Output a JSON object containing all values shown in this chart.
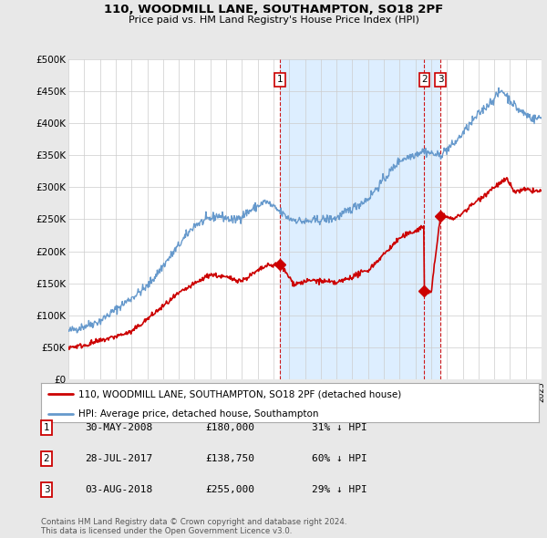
{
  "title": "110, WOODMILL LANE, SOUTHAMPTON, SO18 2PF",
  "subtitle": "Price paid vs. HM Land Registry's House Price Index (HPI)",
  "hpi_label": "HPI: Average price, detached house, Southampton",
  "property_label": "110, WOODMILL LANE, SOUTHAMPTON, SO18 2PF (detached house)",
  "hpi_color": "#6699cc",
  "property_color": "#cc0000",
  "bg_color": "#e8e8e8",
  "plot_bg": "#ffffff",
  "shade_color": "#ddeeff",
  "ylim": [
    0,
    500000
  ],
  "yticks": [
    0,
    50000,
    100000,
    150000,
    200000,
    250000,
    300000,
    350000,
    400000,
    450000,
    500000
  ],
  "ytick_labels": [
    "£0",
    "£50K",
    "£100K",
    "£150K",
    "£200K",
    "£250K",
    "£300K",
    "£350K",
    "£400K",
    "£450K",
    "£500K"
  ],
  "transactions": [
    {
      "price": 180000,
      "label": "1",
      "x": 2008.41
    },
    {
      "price": 138750,
      "label": "2",
      "x": 2017.57
    },
    {
      "price": 255000,
      "label": "3",
      "x": 2018.59
    }
  ],
  "transaction_display": [
    {
      "num": "1",
      "date": "30-MAY-2008",
      "price": "£180,000",
      "pct": "31% ↓ HPI"
    },
    {
      "num": "2",
      "date": "28-JUL-2017",
      "price": "£138,750",
      "pct": "60% ↓ HPI"
    },
    {
      "num": "3",
      "date": "03-AUG-2018",
      "price": "£255,000",
      "pct": "29% ↓ HPI"
    }
  ],
  "footer": "Contains HM Land Registry data © Crown copyright and database right 2024.\nThis data is licensed under the Open Government Licence v3.0.",
  "xmin": 1995,
  "xmax": 2025
}
